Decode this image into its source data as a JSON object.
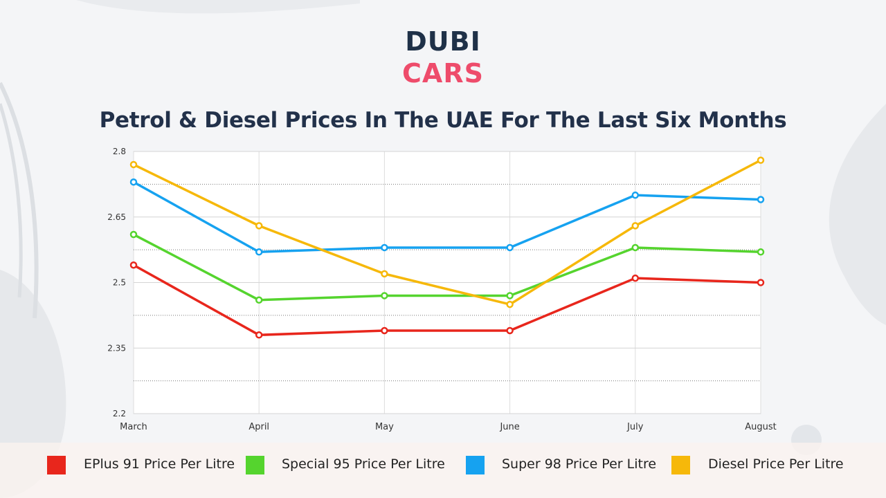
{
  "logo": {
    "line1": "DUBI",
    "line2": "CARS"
  },
  "colors": {
    "logo_dark": "#1f3148",
    "logo_accent": "#ee4c6b",
    "title": "#22314a"
  },
  "chart_data": {
    "type": "line",
    "title": "Petrol & Diesel Prices In The UAE For The Last Six Months",
    "categories": [
      "March",
      "April",
      "May",
      "June",
      "July",
      "August"
    ],
    "ylim": [
      2.2,
      2.8
    ],
    "yticks": [
      "2.2",
      "2.35",
      "2.5",
      "2.65",
      "2.8"
    ],
    "grid": true,
    "legend_position": "bottom",
    "series": [
      {
        "name": "EPlus 91 Price Per Litre",
        "color": "#e8261c",
        "values": [
          2.54,
          2.38,
          2.39,
          2.39,
          2.51,
          2.5
        ]
      },
      {
        "name": "Special 95 Price Per Litre",
        "color": "#55d42e",
        "values": [
          2.61,
          2.46,
          2.47,
          2.47,
          2.58,
          2.57
        ]
      },
      {
        "name": "Super 98 Price Per Litre",
        "color": "#16a2f0",
        "values": [
          2.73,
          2.57,
          2.58,
          2.58,
          2.7,
          2.69
        ]
      },
      {
        "name": "Diesel Price Per Litre",
        "color": "#f6b80a",
        "values": [
          2.77,
          2.63,
          2.52,
          2.45,
          2.63,
          2.78
        ]
      }
    ]
  }
}
